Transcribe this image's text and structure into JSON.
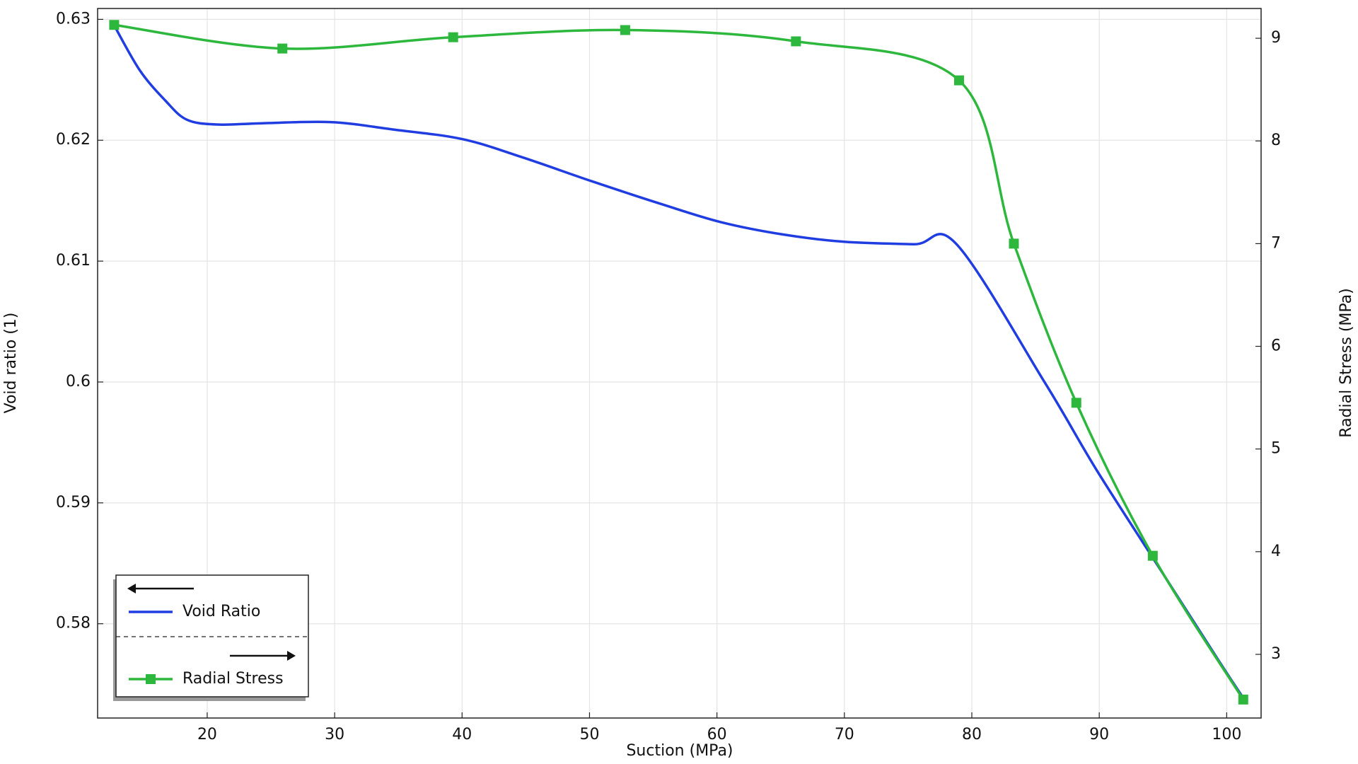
{
  "chart_data": {
    "type": "line",
    "x_label": "Suction (MPa)",
    "y_label": "Void ratio (1)",
    "y2_label": "Radial Stress (MPa)",
    "xlim": [
      11.4,
      102.7
    ],
    "xticks": [
      20,
      30,
      40,
      50,
      60,
      70,
      80,
      90,
      100
    ],
    "ylim": [
      0.5722,
      0.6309
    ],
    "yticks": [
      0.58,
      0.59,
      0.6,
      0.61,
      0.62,
      0.63
    ],
    "y2lim": [
      2.38,
      9.29
    ],
    "y2ticks": [
      3,
      4,
      5,
      6,
      7,
      8,
      9
    ],
    "grid": true,
    "legend": "lower left",
    "series": [
      {
        "name": "Void Ratio",
        "color": "#1f3de0",
        "axis": "y",
        "marker": "none",
        "x": [
          12.7,
          14.7,
          16.7,
          18.4,
          20.8,
          24.2,
          29.7,
          34.5,
          40,
          44.7,
          50.2,
          55.7,
          60.4,
          65.2,
          70,
          75.5,
          78.8,
          85.7,
          89.8,
          94.6,
          99.4,
          101.4
        ],
        "values": [
          0.6295,
          0.6258,
          0.6233,
          0.6217,
          0.6213,
          0.6214,
          0.6215,
          0.6209,
          0.6201,
          0.6186,
          0.6166,
          0.6147,
          0.6132,
          0.6122,
          0.6116,
          0.6114,
          0.6114,
          0.6,
          0.5927,
          0.5848,
          0.5769,
          0.5737
        ]
      },
      {
        "name": "Radial Stress",
        "color": "#2db83d",
        "axis": "y2",
        "marker": "square",
        "x": [
          12.7,
          25.9,
          39.3,
          52.8,
          66.2,
          79.0,
          83.3,
          88.2,
          94.2,
          101.3
        ],
        "values": [
          9.13,
          8.9,
          9.01,
          9.08,
          8.97,
          8.59,
          7.0,
          5.45,
          3.96,
          2.56
        ]
      }
    ]
  }
}
